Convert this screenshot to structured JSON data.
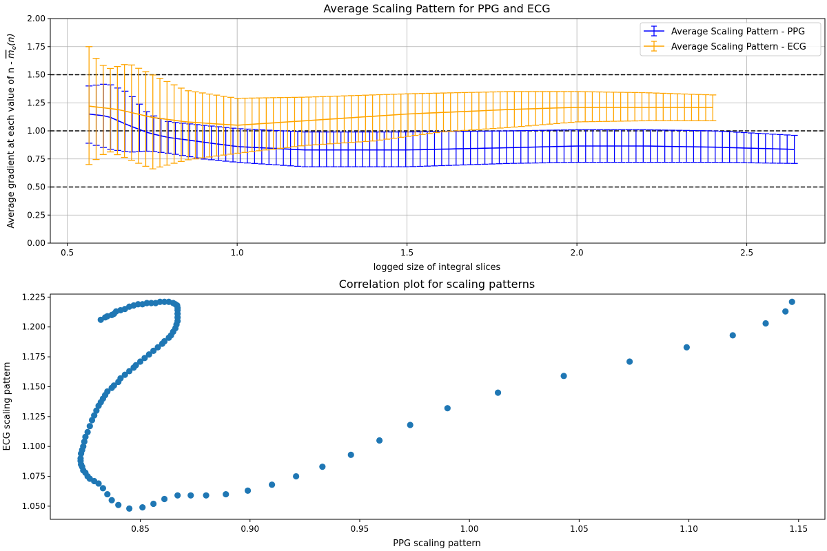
{
  "chart_data": [
    {
      "type": "line",
      "title": "Average Scaling Pattern for PPG and ECG",
      "xlabel": "logged size of integral slices",
      "ylabel": "Average gradient at each value of n - m_e(n)",
      "ylabel_parts": {
        "prefix": "Average gradient at each value of n - ",
        "symbol": "m",
        "subscript": "e",
        "suffix": "(n)"
      },
      "xlim": [
        0.45,
        2.73
      ],
      "ylim": [
        0.0,
        2.0
      ],
      "xticks": [
        "0.5",
        "1.0",
        "1.5",
        "2.0",
        "2.5"
      ],
      "yticks": [
        "0.00",
        "0.25",
        "0.50",
        "0.75",
        "1.00",
        "1.25",
        "1.50",
        "1.75",
        "2.00"
      ],
      "grid": true,
      "legend_position": "top-right",
      "reference_lines": [
        0.5,
        1.0,
        1.5
      ],
      "series": [
        {
          "name": "Average Scaling Pattern - PPG",
          "color": "#0000ff",
          "x_start": 0.564,
          "x_end": 2.64,
          "n_points": 99,
          "mean_knots": [
            [
              0.564,
              1.15
            ],
            [
              0.62,
              1.13
            ],
            [
              0.68,
              1.05
            ],
            [
              0.74,
              0.98
            ],
            [
              0.8,
              0.94
            ],
            [
              0.9,
              0.9
            ],
            [
              1.0,
              0.86
            ],
            [
              1.2,
              0.83
            ],
            [
              1.5,
              0.83
            ],
            [
              1.8,
              0.85
            ],
            [
              2.0,
              0.865
            ],
            [
              2.2,
              0.865
            ],
            [
              2.4,
              0.855
            ],
            [
              2.64,
              0.835
            ]
          ],
          "upper_knots": [
            [
              0.564,
              1.4
            ],
            [
              0.62,
              1.42
            ],
            [
              0.68,
              1.34
            ],
            [
              0.74,
              1.15
            ],
            [
              0.8,
              1.08
            ],
            [
              0.9,
              1.05
            ],
            [
              1.0,
              1.02
            ],
            [
              1.2,
              0.99
            ],
            [
              1.5,
              0.99
            ],
            [
              1.8,
              1.0
            ],
            [
              2.0,
              1.01
            ],
            [
              2.2,
              1.01
            ],
            [
              2.4,
              1.0
            ],
            [
              2.64,
              0.96
            ]
          ],
          "lower_knots": [
            [
              0.564,
              0.89
            ],
            [
              0.62,
              0.84
            ],
            [
              0.68,
              0.81
            ],
            [
              0.74,
              0.82
            ],
            [
              0.8,
              0.8
            ],
            [
              0.9,
              0.75
            ],
            [
              1.0,
              0.72
            ],
            [
              1.2,
              0.68
            ],
            [
              1.5,
              0.68
            ],
            [
              1.8,
              0.71
            ],
            [
              2.0,
              0.72
            ],
            [
              2.2,
              0.72
            ],
            [
              2.4,
              0.72
            ],
            [
              2.64,
              0.71
            ]
          ]
        },
        {
          "name": "Average Scaling Pattern - ECG",
          "color": "#ffa500",
          "x_start": 0.564,
          "x_end": 2.4,
          "n_points": 89,
          "mean_knots": [
            [
              0.564,
              1.22
            ],
            [
              0.65,
              1.19
            ],
            [
              0.75,
              1.12
            ],
            [
              0.85,
              1.08
            ],
            [
              1.0,
              1.05
            ],
            [
              1.2,
              1.09
            ],
            [
              1.5,
              1.15
            ],
            [
              1.8,
              1.19
            ],
            [
              2.0,
              1.21
            ],
            [
              2.2,
              1.21
            ],
            [
              2.4,
              1.21
            ]
          ],
          "upper_knots": [
            [
              0.564,
              1.75
            ],
            [
              0.59,
              1.62
            ],
            [
              0.62,
              1.55
            ],
            [
              0.68,
              1.6
            ],
            [
              0.75,
              1.5
            ],
            [
              0.85,
              1.36
            ],
            [
              1.0,
              1.29
            ],
            [
              1.2,
              1.3
            ],
            [
              1.5,
              1.33
            ],
            [
              1.8,
              1.35
            ],
            [
              2.0,
              1.35
            ],
            [
              2.2,
              1.34
            ],
            [
              2.4,
              1.32
            ]
          ],
          "lower_knots": [
            [
              0.564,
              0.7
            ],
            [
              0.62,
              0.82
            ],
            [
              0.68,
              0.75
            ],
            [
              0.75,
              0.66
            ],
            [
              0.85,
              0.74
            ],
            [
              1.0,
              0.8
            ],
            [
              1.2,
              0.87
            ],
            [
              1.4,
              0.91
            ],
            [
              1.6,
              0.99
            ],
            [
              1.8,
              1.03
            ],
            [
              2.0,
              1.08
            ],
            [
              2.2,
              1.09
            ],
            [
              2.4,
              1.09
            ]
          ]
        }
      ]
    },
    {
      "type": "scatter",
      "title": "Correlation plot for scaling patterns",
      "xlabel": "PPG scaling pattern",
      "ylabel": "ECG scaling pattern",
      "xlim": [
        0.809,
        1.162
      ],
      "ylim": [
        1.039,
        1.2275
      ],
      "xticks": [
        "0.85",
        "0.90",
        "0.95",
        "1.00",
        "1.05",
        "1.10",
        "1.15"
      ],
      "yticks": [
        "1.050",
        "1.075",
        "1.100",
        "1.125",
        "1.150",
        "1.175",
        "1.200",
        "1.225"
      ],
      "grid": false,
      "color": "#1f77b4",
      "points": [
        [
          1.147,
          1.221
        ],
        [
          1.144,
          1.213
        ],
        [
          1.135,
          1.203
        ],
        [
          1.12,
          1.193
        ],
        [
          1.099,
          1.183
        ],
        [
          1.073,
          1.171
        ],
        [
          1.043,
          1.159
        ],
        [
          1.013,
          1.145
        ],
        [
          0.99,
          1.132
        ],
        [
          0.973,
          1.118
        ],
        [
          0.959,
          1.105
        ],
        [
          0.946,
          1.093
        ],
        [
          0.933,
          1.083
        ],
        [
          0.921,
          1.075
        ],
        [
          0.91,
          1.068
        ],
        [
          0.899,
          1.063
        ],
        [
          0.889,
          1.06
        ],
        [
          0.88,
          1.059
        ],
        [
          0.873,
          1.059
        ],
        [
          0.867,
          1.059
        ],
        [
          0.861,
          1.056
        ],
        [
          0.856,
          1.052
        ],
        [
          0.851,
          1.049
        ],
        [
          0.845,
          1.048
        ],
        [
          0.84,
          1.051
        ],
        [
          0.837,
          1.055
        ],
        [
          0.835,
          1.06
        ],
        [
          0.833,
          1.065
        ],
        [
          0.831,
          1.069
        ],
        [
          0.829,
          1.071
        ],
        [
          0.827,
          1.073
        ],
        [
          0.826,
          1.075
        ],
        [
          0.825,
          1.078
        ],
        [
          0.824,
          1.08
        ],
        [
          0.8235,
          1.083
        ],
        [
          0.823,
          1.085
        ],
        [
          0.8228,
          1.088
        ],
        [
          0.8228,
          1.09
        ],
        [
          0.823,
          1.094
        ],
        [
          0.8235,
          1.097
        ],
        [
          0.824,
          1.1
        ],
        [
          0.8245,
          1.104
        ],
        [
          0.825,
          1.108
        ],
        [
          0.826,
          1.112
        ],
        [
          0.827,
          1.117
        ],
        [
          0.828,
          1.122
        ],
        [
          0.829,
          1.126
        ],
        [
          0.83,
          1.13
        ],
        [
          0.831,
          1.134
        ],
        [
          0.832,
          1.137
        ],
        [
          0.833,
          1.14
        ],
        [
          0.834,
          1.143
        ],
        [
          0.835,
          1.146
        ],
        [
          0.837,
          1.149
        ],
        [
          0.838,
          1.151
        ],
        [
          0.84,
          1.154
        ],
        [
          0.841,
          1.157
        ],
        [
          0.843,
          1.16
        ],
        [
          0.845,
          1.163
        ],
        [
          0.847,
          1.166
        ],
        [
          0.848,
          1.168
        ],
        [
          0.85,
          1.171
        ],
        [
          0.852,
          1.174
        ],
        [
          0.854,
          1.177
        ],
        [
          0.856,
          1.18
        ],
        [
          0.858,
          1.183
        ],
        [
          0.86,
          1.186
        ],
        [
          0.861,
          1.188
        ],
        [
          0.863,
          1.191
        ],
        [
          0.864,
          1.193
        ],
        [
          0.865,
          1.196
        ],
        [
          0.866,
          1.199
        ],
        [
          0.8665,
          1.202
        ],
        [
          0.867,
          1.205
        ],
        [
          0.867,
          1.208
        ],
        [
          0.867,
          1.211
        ],
        [
          0.867,
          1.214
        ],
        [
          0.867,
          1.216
        ],
        [
          0.8668,
          1.218
        ],
        [
          0.866,
          1.219
        ],
        [
          0.865,
          1.22
        ],
        [
          0.863,
          1.221
        ],
        [
          0.861,
          1.221
        ],
        [
          0.859,
          1.221
        ],
        [
          0.857,
          1.22
        ],
        [
          0.855,
          1.22
        ],
        [
          0.853,
          1.22
        ],
        [
          0.851,
          1.219
        ],
        [
          0.849,
          1.219
        ],
        [
          0.847,
          1.218
        ],
        [
          0.845,
          1.217
        ],
        [
          0.843,
          1.215
        ],
        [
          0.841,
          1.214
        ],
        [
          0.839,
          1.213
        ],
        [
          0.838,
          1.211
        ],
        [
          0.837,
          1.21
        ],
        [
          0.835,
          1.209
        ],
        [
          0.834,
          1.208
        ],
        [
          0.832,
          1.206
        ]
      ]
    }
  ]
}
